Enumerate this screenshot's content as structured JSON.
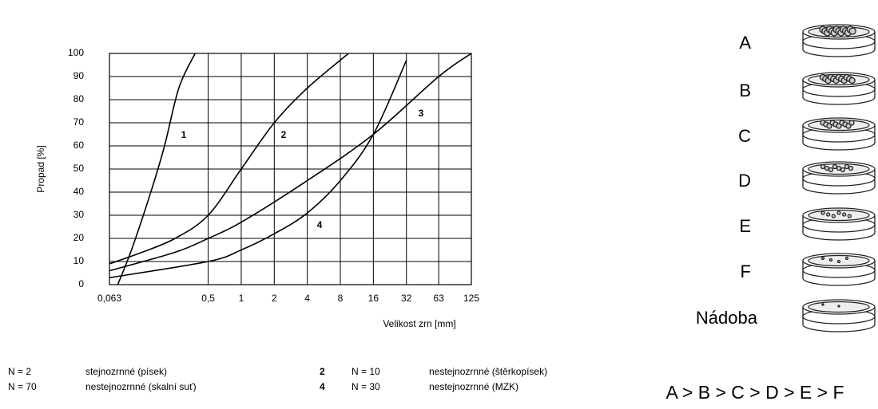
{
  "chart_data": {
    "type": "line",
    "xlabel": "Velikost zrn [mm]",
    "ylabel": "Propad [%]",
    "xscale": "log",
    "grid": true,
    "xlim": [
      0.063,
      125
    ],
    "xticks": [
      {
        "value": 0.063,
        "label": "0,063"
      },
      {
        "value": 0.5,
        "label": "0,5"
      },
      1,
      2,
      4,
      8,
      16,
      32,
      63,
      125
    ],
    "ylim": [
      0,
      100
    ],
    "yticks": [
      0,
      10,
      20,
      30,
      40,
      50,
      60,
      70,
      80,
      90,
      100
    ],
    "series": [
      {
        "name": "1",
        "color": "#000000",
        "x": [
          0.075,
          0.1,
          0.15,
          0.2,
          0.27,
          0.38
        ],
        "values": [
          0,
          15,
          40,
          60,
          85,
          100
        ]
      },
      {
        "name": "2",
        "color": "#000000",
        "x": [
          0.063,
          0.125,
          0.25,
          0.5,
          1,
          2,
          4,
          9.5
        ],
        "values": [
          9,
          14,
          20,
          30,
          50,
          70,
          85,
          100
        ]
      },
      {
        "name": "3",
        "color": "#000000",
        "x": [
          0.063,
          0.25,
          0.5,
          1,
          4,
          16,
          63,
          125
        ],
        "values": [
          6,
          14,
          20,
          27,
          45,
          65,
          90,
          100
        ]
      },
      {
        "name": "4",
        "color": "#000000",
        "x": [
          0.063,
          0.5,
          1,
          2,
          4,
          8,
          16,
          32
        ],
        "values": [
          3,
          10,
          15,
          22,
          31,
          45,
          65,
          97
        ]
      }
    ]
  },
  "legend": [
    {
      "n": "N = 2",
      "text": "stejnozrnné (písek)"
    },
    {
      "n": "N = 70",
      "text": "nestejnozrnné (skalní suť)"
    },
    {
      "key": "2",
      "n": "N = 10",
      "text": "nestejnozrnné (štěrkopísek)"
    },
    {
      "key": "4",
      "n": "N = 30",
      "text": "nestejnozrnné (MZK)"
    }
  ],
  "sieves": {
    "labels": [
      "A",
      "B",
      "C",
      "D",
      "E",
      "F",
      "Nádoba"
    ],
    "order": "A > B > C > D > E > F"
  }
}
